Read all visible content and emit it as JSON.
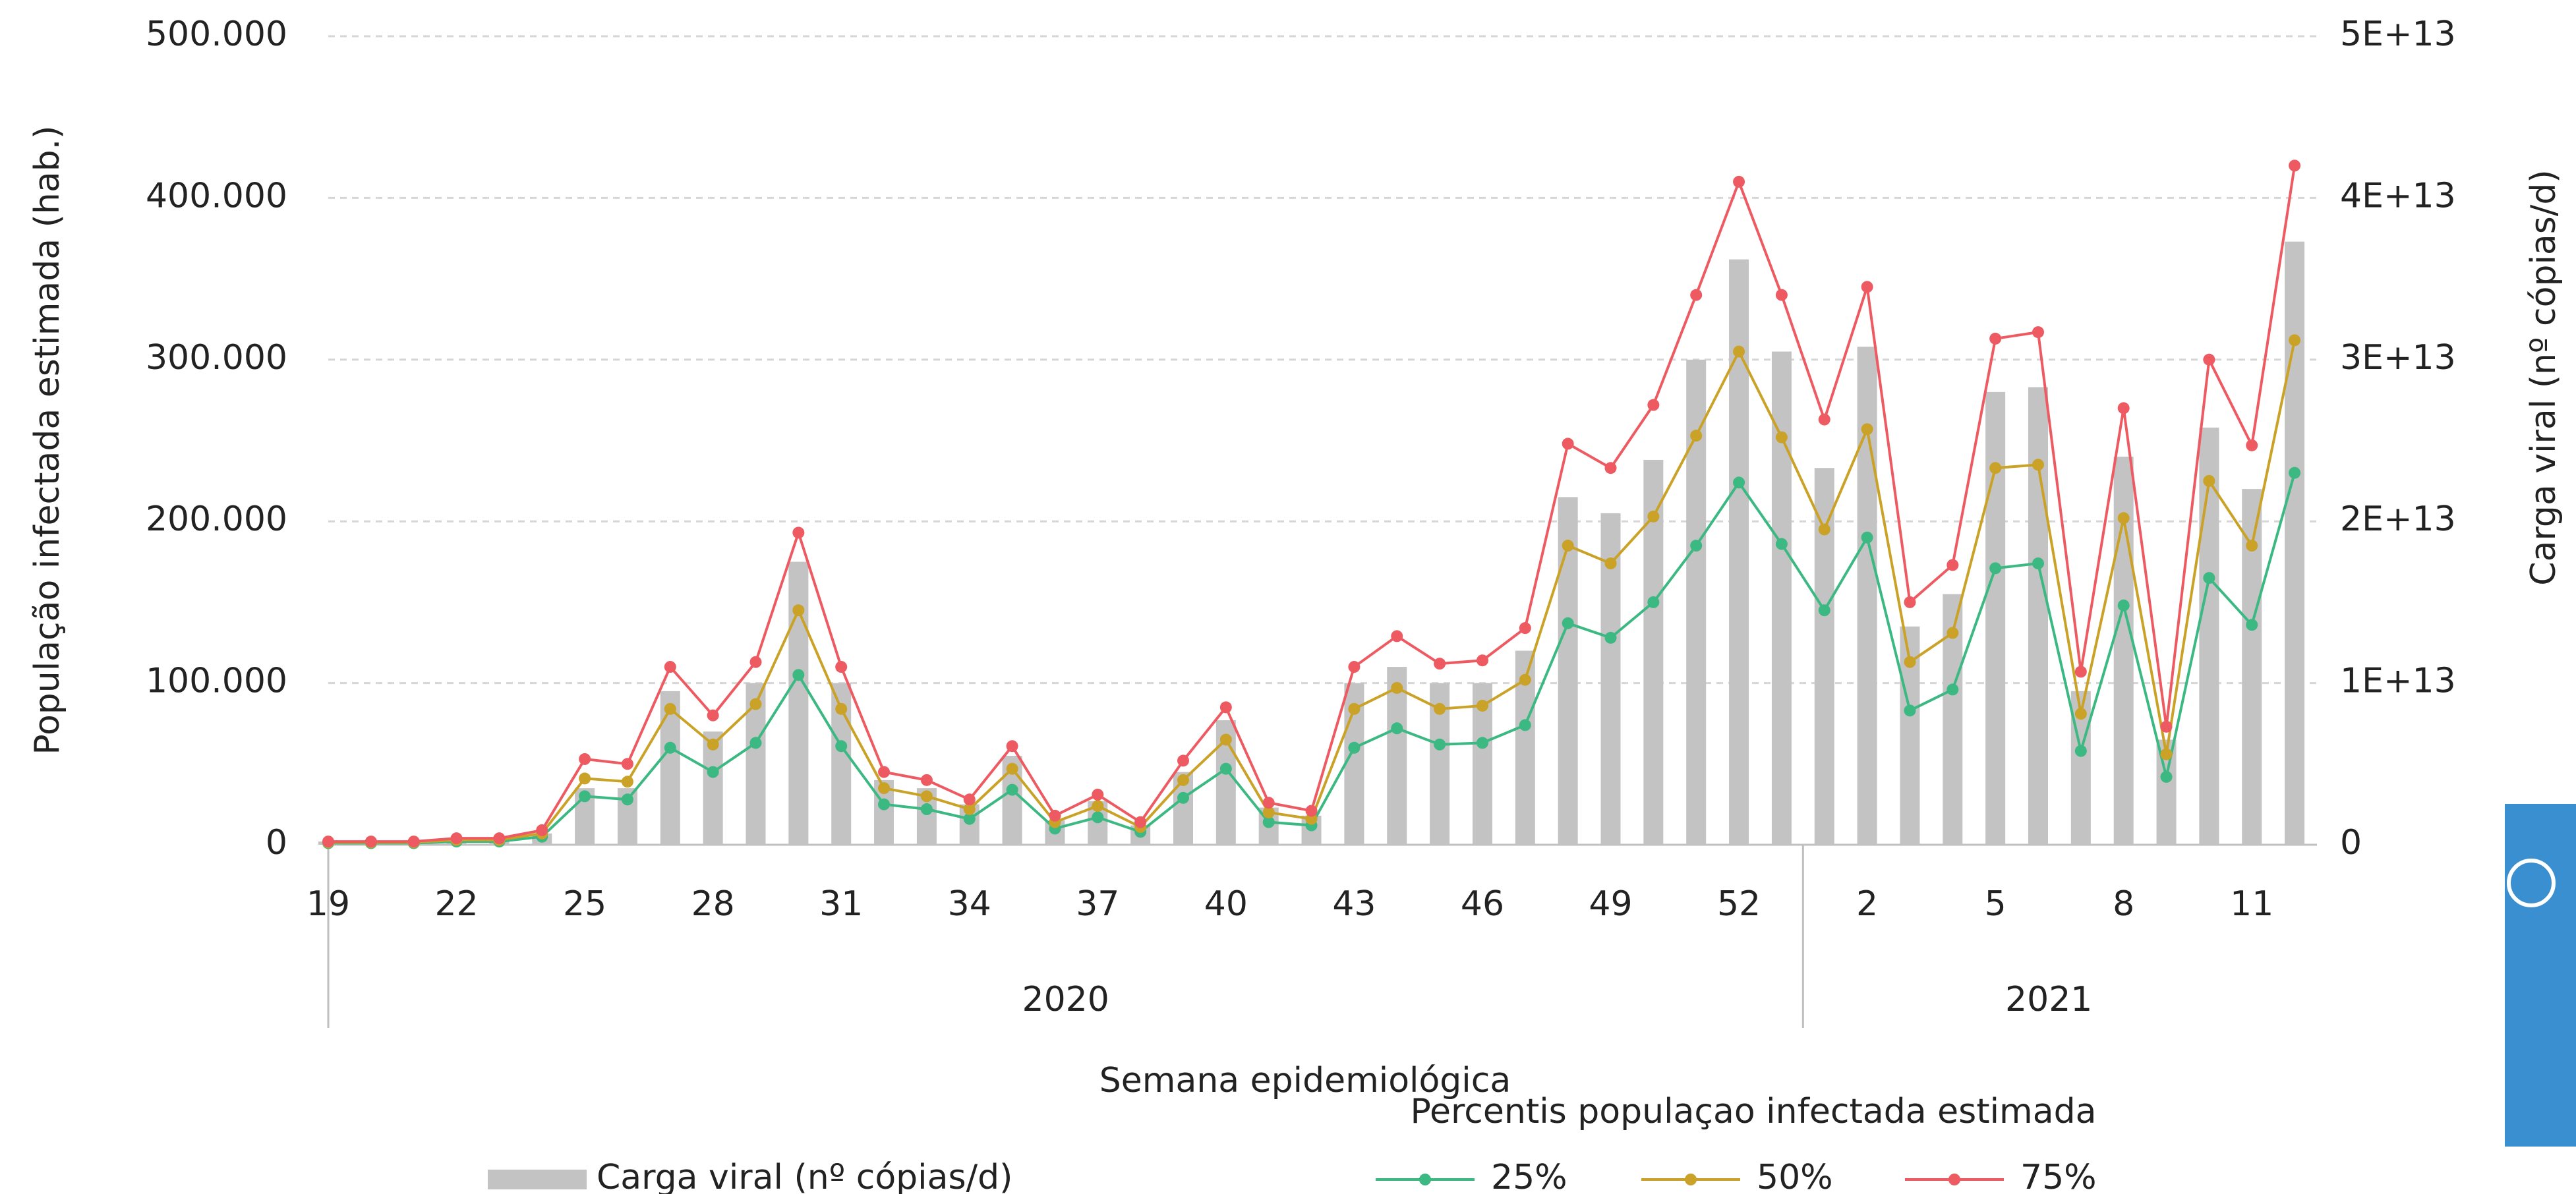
{
  "chart_data": {
    "type": "combo",
    "categories": [
      "19",
      null,
      null,
      "22",
      null,
      null,
      "25",
      null,
      null,
      "28",
      null,
      null,
      "31",
      null,
      null,
      "34",
      null,
      null,
      "37",
      null,
      null,
      "40",
      null,
      null,
      "43",
      null,
      null,
      "46",
      null,
      null,
      "49",
      null,
      null,
      "52",
      null,
      null,
      "2",
      null,
      null,
      "5",
      null,
      null,
      "8",
      null,
      null,
      "11",
      null
    ],
    "groups": [
      {
        "label": "2020",
        "size": 35
      },
      {
        "label": "2021",
        "size": 12
      }
    ],
    "xlabel": "Semana epidemiológica",
    "ylabel": "População infectada estimada (hab.)",
    "y2label": "Carga viral (nº cópias/d)",
    "legend_title": "Percentis populaçao infectada estimada",
    "ylim": [
      0,
      500000
    ],
    "yticks": [
      0,
      {
        "value": 100000,
        "label": "100.000"
      },
      {
        "value": 200000,
        "label": "200.000"
      },
      {
        "value": 300000,
        "label": "300.000"
      },
      {
        "value": 400000,
        "label": "400.000"
      },
      {
        "value": 500000,
        "label": "500.000"
      }
    ],
    "y2lim": [
      0,
      50000000000000
    ],
    "y2ticks": [
      0,
      {
        "value": 10000000000000,
        "label": "1E+13"
      },
      {
        "value": 20000000000000,
        "label": "2E+13"
      },
      {
        "value": 30000000000000,
        "label": "3E+13"
      },
      {
        "value": 40000000000000,
        "label": "4E+13"
      },
      {
        "value": 50000000000000,
        "label": "5E+13"
      }
    ],
    "grid": true,
    "series": [
      {
        "name": "Carga viral  (nº cópias/d)",
        "type": "bar",
        "axis": "y2",
        "color": "#c3c3c3",
        "values": [
          200000000000,
          200000000000,
          200000000000,
          300000000000,
          300000000000,
          700000000000,
          3500000000000,
          3500000000000,
          9500000000000,
          7000000000000,
          10000000000000,
          17500000000000,
          10000000000000,
          4000000000000,
          3500000000000,
          2500000000000,
          5500000000000,
          1500000000000,
          2700000000000,
          1200000000000,
          4500000000000,
          7700000000000,
          2300000000000,
          1800000000000,
          10000000000000,
          11000000000000,
          10000000000000,
          10000000000000,
          12000000000000,
          21500000000000,
          20500000000000,
          23800000000000,
          30000000000000,
          36200000000000,
          30500000000000,
          23300000000000,
          30800000000000,
          13500000000000,
          15500000000000,
          28000000000000,
          28300000000000,
          9500000000000,
          24000000000000,
          6500000000000,
          25800000000000,
          22000000000000,
          37300000000000
        ]
      },
      {
        "name": "25%",
        "type": "line",
        "color": "#3cb882",
        "values": [
          1000,
          1000,
          1000,
          2000,
          2000,
          5000,
          30000,
          28000,
          60000,
          45000,
          63000,
          105000,
          61000,
          25000,
          22000,
          16000,
          34000,
          10000,
          17000,
          8000,
          29000,
          47000,
          14000,
          12000,
          60000,
          72000,
          62000,
          63000,
          74000,
          137000,
          128000,
          150000,
          185000,
          224000,
          186000,
          145000,
          190000,
          83000,
          96000,
          171000,
          174000,
          58000,
          148000,
          42000,
          165000,
          136000,
          230000
        ]
      },
      {
        "name": "50%",
        "type": "line",
        "color": "#c9a227",
        "values": [
          1500,
          1500,
          1500,
          3000,
          3000,
          7000,
          41000,
          39000,
          84000,
          62000,
          87000,
          145000,
          84000,
          35000,
          30000,
          22000,
          47000,
          14000,
          24000,
          11000,
          40000,
          65000,
          20000,
          16000,
          84000,
          97000,
          84000,
          86000,
          102000,
          185000,
          174000,
          203000,
          253000,
          305000,
          252000,
          195000,
          257000,
          113000,
          131000,
          233000,
          235000,
          81000,
          202000,
          56000,
          225000,
          185000,
          312000
        ]
      },
      {
        "name": "75%",
        "type": "line",
        "color": "#ee5a62",
        "values": [
          2000,
          2000,
          2000,
          4000,
          4000,
          9000,
          53000,
          50000,
          110000,
          80000,
          113000,
          193000,
          110000,
          45000,
          40000,
          28000,
          61000,
          18000,
          31000,
          14000,
          52000,
          85000,
          26000,
          21000,
          110000,
          129000,
          112000,
          114000,
          134000,
          248000,
          233000,
          272000,
          340000,
          410000,
          340000,
          263000,
          345000,
          150000,
          173000,
          313000,
          317000,
          107000,
          270000,
          73000,
          300000,
          247000,
          420000
        ]
      }
    ]
  }
}
